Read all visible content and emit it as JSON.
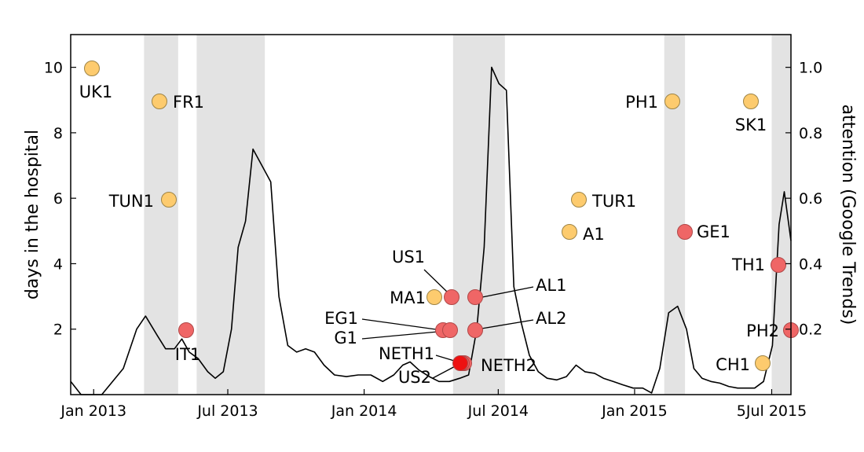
{
  "chart_data": {
    "type": "scatter",
    "ylabel": "days in the hospital",
    "y2label": "attention (Google Trends)",
    "x_range": [
      "2012-12-01",
      "2015-07-31"
    ],
    "ylim": [
      0,
      11
    ],
    "y2lim": [
      0,
      1.1
    ],
    "x_ticks": [
      {
        "date": "2013-01-01",
        "label": "Jan 2013"
      },
      {
        "date": "2013-07-01",
        "label": "Jul 2013"
      },
      {
        "date": "2014-01-01",
        "label": "Jan 2014"
      },
      {
        "date": "2014-07-01",
        "label": "Jul 2014"
      },
      {
        "date": "2015-01-01",
        "label": "Jan 2015"
      },
      {
        "date": "2015-07-05",
        "label": "5Jul 2015"
      }
    ],
    "y_ticks": [
      {
        "value": 2,
        "label": "2"
      },
      {
        "value": 4,
        "label": "4"
      },
      {
        "value": 6,
        "label": "6"
      },
      {
        "value": 8,
        "label": "8"
      },
      {
        "value": 10,
        "label": "10"
      }
    ],
    "y2_ticks": [
      {
        "value": 0.2,
        "label": "0.2"
      },
      {
        "value": 0.4,
        "label": "0.4"
      },
      {
        "value": 0.6,
        "label": "0.6"
      },
      {
        "value": 0.8,
        "label": "0.8"
      },
      {
        "value": 1.0,
        "label": "1.0"
      }
    ],
    "shaded_periods": [
      [
        "2013-03-10",
        "2013-04-25"
      ],
      [
        "2013-05-20",
        "2013-08-20"
      ],
      [
        "2014-05-01",
        "2014-07-10"
      ],
      [
        "2015-02-10",
        "2015-03-10"
      ],
      [
        "2015-07-05",
        "2015-07-31"
      ]
    ],
    "colors": {
      "shade": "#e3e3e3",
      "line": "#000000",
      "orange": "#fdcb6e",
      "orange_edge": "#9e8446",
      "red": "#ef6666",
      "red_edge": "#b04848",
      "red_dark": "#ee1111",
      "leader": "#000000"
    },
    "attention_series": [
      [
        "2012-12-01",
        0.04
      ],
      [
        "2012-12-15",
        0.0
      ],
      [
        "2013-01-12",
        0.0
      ],
      [
        "2013-02-10",
        0.08
      ],
      [
        "2013-02-28",
        0.2
      ],
      [
        "2013-03-12",
        0.24
      ],
      [
        "2013-03-28",
        0.18
      ],
      [
        "2013-04-08",
        0.14
      ],
      [
        "2013-04-20",
        0.14
      ],
      [
        "2013-04-30",
        0.17
      ],
      [
        "2013-05-10",
        0.13
      ],
      [
        "2013-05-22",
        0.11
      ],
      [
        "2013-06-04",
        0.07
      ],
      [
        "2013-06-14",
        0.05
      ],
      [
        "2013-06-25",
        0.07
      ],
      [
        "2013-07-06",
        0.2
      ],
      [
        "2013-07-15",
        0.45
      ],
      [
        "2013-07-25",
        0.53
      ],
      [
        "2013-08-04",
        0.75
      ],
      [
        "2013-08-16",
        0.7
      ],
      [
        "2013-08-28",
        0.65
      ],
      [
        "2013-09-08",
        0.3
      ],
      [
        "2013-09-20",
        0.15
      ],
      [
        "2013-10-02",
        0.13
      ],
      [
        "2013-10-14",
        0.14
      ],
      [
        "2013-10-26",
        0.13
      ],
      [
        "2013-11-08",
        0.09
      ],
      [
        "2013-11-22",
        0.06
      ],
      [
        "2013-12-08",
        0.055
      ],
      [
        "2013-12-24",
        0.06
      ],
      [
        "2014-01-10",
        0.06
      ],
      [
        "2014-01-26",
        0.04
      ],
      [
        "2014-02-10",
        0.06
      ],
      [
        "2014-02-22",
        0.09
      ],
      [
        "2014-03-04",
        0.1
      ],
      [
        "2014-03-16",
        0.075
      ],
      [
        "2014-03-30",
        0.055
      ],
      [
        "2014-04-12",
        0.04
      ],
      [
        "2014-04-26",
        0.04
      ],
      [
        "2014-05-10",
        0.05
      ],
      [
        "2014-05-22",
        0.06
      ],
      [
        "2014-06-02",
        0.2
      ],
      [
        "2014-06-12",
        0.45
      ],
      [
        "2014-06-22",
        1.0
      ],
      [
        "2014-07-02",
        0.95
      ],
      [
        "2014-07-12",
        0.93
      ],
      [
        "2014-07-22",
        0.33
      ],
      [
        "2014-08-01",
        0.22
      ],
      [
        "2014-08-12",
        0.12
      ],
      [
        "2014-08-24",
        0.07
      ],
      [
        "2014-09-05",
        0.05
      ],
      [
        "2014-09-18",
        0.045
      ],
      [
        "2014-10-01",
        0.055
      ],
      [
        "2014-10-14",
        0.09
      ],
      [
        "2014-10-26",
        0.07
      ],
      [
        "2014-11-08",
        0.065
      ],
      [
        "2014-11-20",
        0.05
      ],
      [
        "2014-12-03",
        0.04
      ],
      [
        "2014-12-16",
        0.03
      ],
      [
        "2014-12-30",
        0.02
      ],
      [
        "2015-01-12",
        0.02
      ],
      [
        "2015-01-24",
        0.005
      ],
      [
        "2015-02-04",
        0.08
      ],
      [
        "2015-02-16",
        0.25
      ],
      [
        "2015-02-28",
        0.27
      ],
      [
        "2015-03-12",
        0.2
      ],
      [
        "2015-03-22",
        0.08
      ],
      [
        "2015-04-02",
        0.05
      ],
      [
        "2015-04-14",
        0.04
      ],
      [
        "2015-04-26",
        0.035
      ],
      [
        "2015-05-08",
        0.025
      ],
      [
        "2015-05-20",
        0.02
      ],
      [
        "2015-06-01",
        0.02
      ],
      [
        "2015-06-12",
        0.02
      ],
      [
        "2015-06-24",
        0.04
      ],
      [
        "2015-07-06",
        0.15
      ],
      [
        "2015-07-15",
        0.52
      ],
      [
        "2015-07-22",
        0.62
      ],
      [
        "2015-07-28",
        0.52
      ],
      [
        "2015-07-31",
        0.47
      ]
    ],
    "points": [
      {
        "label": "UK1",
        "date": "2013-01-15",
        "days": 10,
        "color": "orange",
        "label_pos": "below-left"
      },
      {
        "label": "FR1",
        "date": "2013-05-10",
        "days": 9,
        "color": "orange",
        "label_pos": "right"
      },
      {
        "label": "TUN1",
        "date": "2013-05-28",
        "days": 6,
        "color": "orange",
        "label_pos": "left"
      },
      {
        "label": "IT1",
        "date": "2013-06-28",
        "days": 2,
        "color": "red",
        "label_pos": "below"
      },
      {
        "label": "MA1",
        "date": "2014-04-28",
        "days": 3,
        "color": "orange",
        "label_pos": "left"
      },
      {
        "label": "US1",
        "date": "2014-05-15",
        "days": 3,
        "color": "red",
        "label_pos": "leader-up-left"
      },
      {
        "label": "AL1",
        "date": "2014-06-10",
        "days": 3,
        "color": "red",
        "label_pos": "leader-right"
      },
      {
        "label": "EG1",
        "date": "2014-05-01",
        "days": 2,
        "color": "red",
        "label_pos": "leader-left"
      },
      {
        "label": "G1",
        "date": "2014-05-12",
        "days": 2,
        "color": "red",
        "label_pos": "leader-left"
      },
      {
        "label": "AL2",
        "date": "2014-06-10",
        "days": 2,
        "color": "red",
        "label_pos": "leader-right"
      },
      {
        "label": "NETH1",
        "date": "2014-05-30",
        "days": 1,
        "color": "red",
        "label_pos": "leader-left"
      },
      {
        "label": "US2",
        "date": "2014-05-25",
        "days": 1,
        "color": "red_dark",
        "label_pos": "leader-below-left"
      },
      {
        "label": "NETH2",
        "date": "2014-05-22",
        "days": 1,
        "color": "red",
        "label_pos": "right"
      },
      {
        "label": "TUR1",
        "date": "2014-10-01",
        "days": 6,
        "color": "orange",
        "label_pos": "right"
      },
      {
        "label": "A1",
        "date": "2014-09-15",
        "days": 5,
        "color": "orange",
        "label_pos": "right"
      },
      {
        "label": "PH1",
        "date": "2015-02-05",
        "days": 9,
        "color": "orange",
        "label_pos": "left"
      },
      {
        "label": "GE1",
        "date": "2015-02-25",
        "days": 5,
        "color": "red",
        "label_pos": "right"
      },
      {
        "label": "SK1",
        "date": "2015-05-15",
        "days": 9,
        "color": "orange",
        "label_pos": "below"
      },
      {
        "label": "TH1",
        "date": "2015-07-15",
        "days": 4,
        "color": "red",
        "label_pos": "left"
      },
      {
        "label": "PH2",
        "date": "2015-07-31",
        "days": 2,
        "color": "red",
        "label_pos": "left"
      },
      {
        "label": "CH1",
        "date": "2015-06-01",
        "days": 1,
        "color": "orange",
        "label_pos": "left"
      }
    ]
  }
}
